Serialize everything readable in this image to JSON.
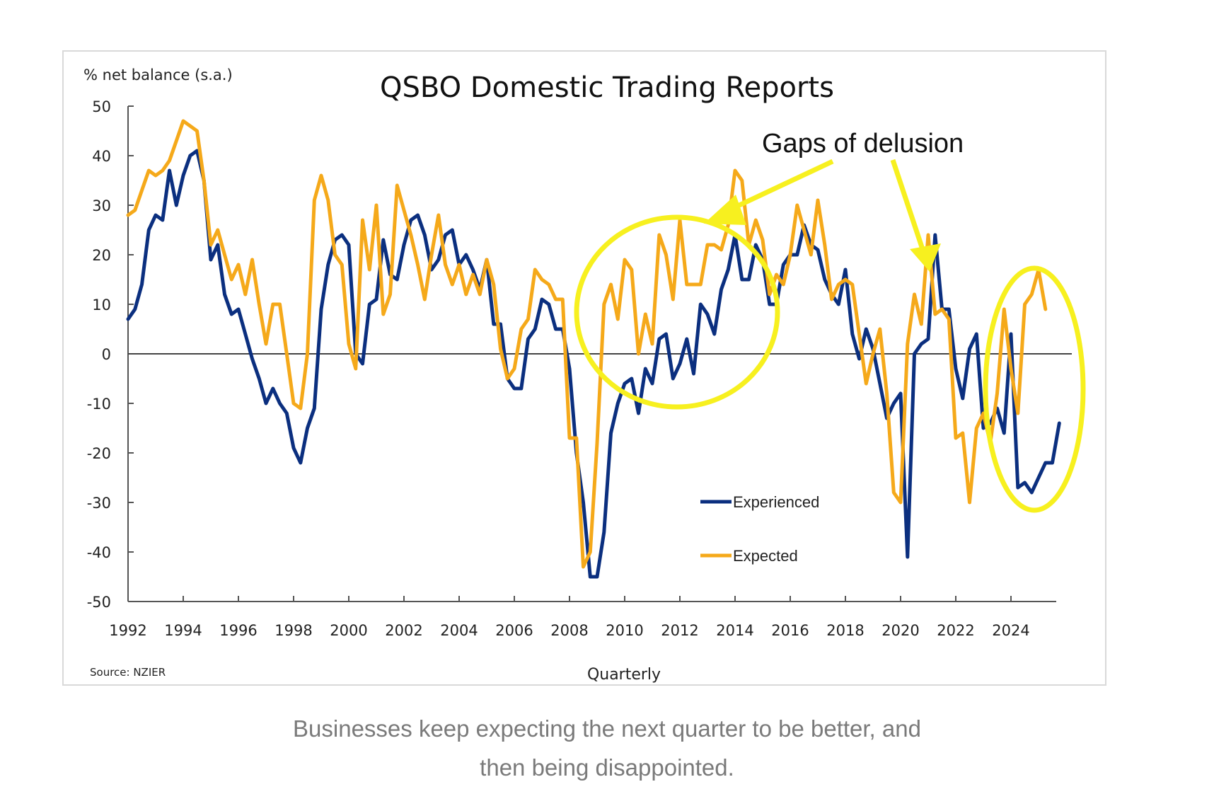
{
  "caption": {
    "line1": "Businesses keep expecting the next quarter to be better, and",
    "line2": "then being disappointed."
  },
  "chart_data": {
    "type": "line",
    "title": "QSBO Domestic Trading Reports",
    "ylabel": "% net balance (s.a.)",
    "xlabel": "Quarterly",
    "source": "Source: NZIER",
    "ylim": [
      -50,
      50
    ],
    "yticks": [
      50,
      40,
      30,
      20,
      10,
      0,
      -10,
      -20,
      -30,
      -40,
      -50
    ],
    "xlim": [
      1992,
      2025.75
    ],
    "xticks": [
      1992,
      1994,
      1996,
      1998,
      2000,
      2002,
      2004,
      2006,
      2008,
      2010,
      2012,
      2014,
      2016,
      2018,
      2020,
      2022,
      2024
    ],
    "grid": false,
    "zero_line": true,
    "legend_position": "bottom-center-right",
    "frequency": "quarterly",
    "start": 1992.0,
    "series": [
      {
        "name": "Experienced",
        "color": "#0b2f7f",
        "values": [
          7,
          9,
          14,
          25,
          28,
          27,
          37,
          30,
          36,
          40,
          41,
          35,
          19,
          22,
          12,
          8,
          9,
          4,
          -1,
          -5,
          -10,
          -7,
          -10,
          -12,
          -19,
          -22,
          -15,
          -11,
          9,
          18,
          23,
          24,
          22,
          0,
          -2,
          10,
          11,
          23,
          16,
          15,
          22,
          27,
          28,
          24,
          17,
          19,
          24,
          25,
          18,
          20,
          17,
          13,
          19,
          6,
          6,
          -5,
          -7,
          -7,
          3,
          5,
          11,
          10,
          5,
          5,
          -3,
          -20,
          -30,
          -45,
          -45,
          -36,
          -16,
          -10,
          -6,
          -5,
          -12,
          -3,
          -6,
          3,
          4,
          -5,
          -2,
          3,
          -4,
          10,
          8,
          4,
          13,
          17,
          24,
          15,
          15,
          22,
          19,
          10,
          10,
          18,
          20,
          20,
          26,
          22,
          21,
          15,
          12,
          10,
          17,
          4,
          -1,
          5,
          1,
          -6,
          -13,
          -10,
          -8,
          -41,
          0,
          2,
          3,
          24,
          9,
          9,
          -3,
          -9,
          1,
          4,
          -15,
          -14,
          -11,
          -16,
          4,
          -27,
          -26,
          -28,
          -25,
          -22,
          -22,
          -14
        ]
      },
      {
        "name": "Expected",
        "color": "#f5a91a",
        "values": [
          28,
          29,
          33,
          37,
          36,
          37,
          39,
          43,
          47,
          46,
          45,
          35,
          22,
          25,
          20,
          15,
          18,
          12,
          19,
          10,
          2,
          10,
          10,
          0,
          -10,
          -11,
          0,
          31,
          36,
          31,
          20,
          18,
          2,
          -3,
          27,
          17,
          30,
          8,
          12,
          34,
          29,
          24,
          18,
          11,
          20,
          28,
          18,
          14,
          18,
          12,
          16,
          12,
          19,
          14,
          1,
          -5,
          -3,
          5,
          7,
          17,
          15,
          14,
          11,
          11,
          -17,
          -17,
          -43,
          -40,
          -18,
          10,
          14,
          7,
          19,
          17,
          0,
          8,
          2,
          24,
          20,
          11,
          27,
          14,
          14,
          14,
          22,
          22,
          21,
          26,
          37,
          35,
          22,
          27,
          23,
          12,
          16,
          14,
          20,
          30,
          25,
          20,
          31,
          22,
          11,
          14,
          15,
          14,
          4,
          -6,
          0,
          5,
          -8,
          -28,
          -30,
          2,
          12,
          6,
          24,
          8,
          9,
          7,
          -17,
          -16,
          -30,
          -15,
          -12,
          -18,
          -8,
          9,
          -3,
          -12,
          10,
          12,
          17,
          9
        ]
      }
    ],
    "annotations": {
      "text": "Gaps of delusion",
      "color": "#f7f01f",
      "highlighted_periods": [
        {
          "from": 2009.5,
          "to": 2015.5,
          "label": "circle-2010s"
        },
        {
          "from": 2023.5,
          "to": 2025.5,
          "label": "circle-2020s"
        }
      ]
    }
  }
}
